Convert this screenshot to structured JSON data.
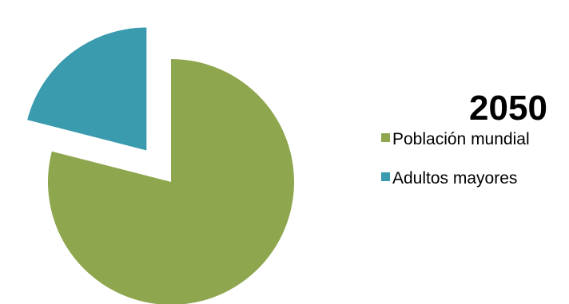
{
  "chart_data": {
    "type": "pie",
    "title": "2050",
    "slices": [
      {
        "name": "Población mundial",
        "value": 79,
        "color": "#8EA64E",
        "exploded": false
      },
      {
        "name": "Adultos mayores",
        "value": 21,
        "color": "#3A9AAE",
        "exploded": true
      }
    ],
    "legend": {
      "position": "right",
      "items": [
        "Población mundial",
        "Adultos mayores"
      ]
    }
  }
}
